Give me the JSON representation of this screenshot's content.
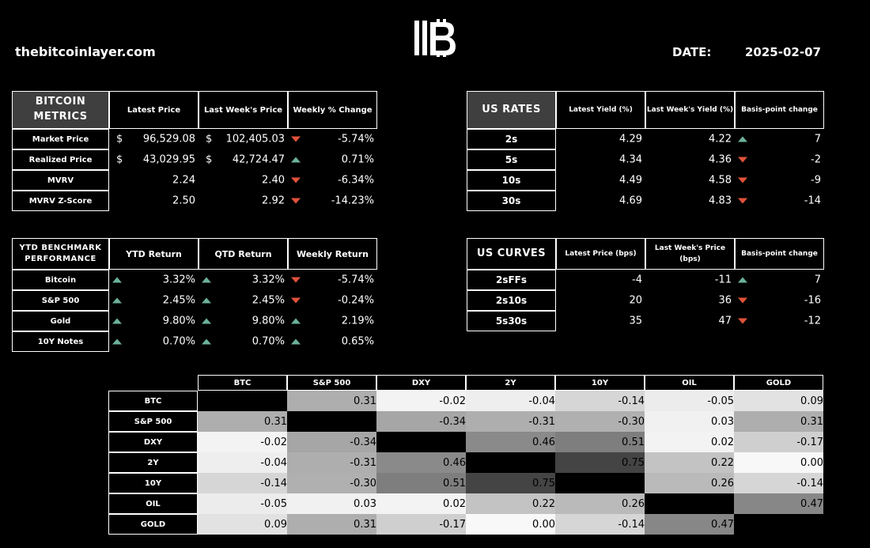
{
  "header": {
    "site": "thebitcoinlayer.com",
    "date_label": "DATE:",
    "date_value": "2025-02-07",
    "logo_icon": "bitcoin-layer-logo-icon"
  },
  "colors": {
    "up_arrow": "#6bb29a",
    "down_arrow": "#e0523a",
    "title_bg": "#3f3f3f"
  },
  "bitcoin_metrics": {
    "title_line1": "BITCOIN",
    "title_line2": "METRICS",
    "columns": [
      "Latest Price",
      "Last Week's Price",
      "Weekly % Change"
    ],
    "rows": [
      {
        "label": "Market Price",
        "cur1": "$",
        "latest": "96,529.08",
        "cur2": "$",
        "last": "102,405.03",
        "dir": "down",
        "change": "-5.74%"
      },
      {
        "label": "Realized Price",
        "cur1": "$",
        "latest": "43,029.95",
        "cur2": "$",
        "last": "42,724.47",
        "dir": "up",
        "change": "0.71%"
      },
      {
        "label": "MVRV",
        "cur1": "",
        "latest": "2.24",
        "cur2": "",
        "last": "2.40",
        "dir": "down",
        "change": "-6.34%"
      },
      {
        "label": "MVRV Z-Score",
        "cur1": "",
        "latest": "2.50",
        "cur2": "",
        "last": "2.92",
        "dir": "down",
        "change": "-14.23%"
      }
    ]
  },
  "us_rates": {
    "title": "US RATES",
    "columns": [
      "Latest Yield (%)",
      "Last Week's Yield (%)",
      "Basis-point change"
    ],
    "rows": [
      {
        "label": "2s",
        "latest": "4.29",
        "last": "4.22",
        "dir": "up",
        "change": "7"
      },
      {
        "label": "5s",
        "latest": "4.34",
        "last": "4.36",
        "dir": "down",
        "change": "-2"
      },
      {
        "label": "10s",
        "latest": "4.49",
        "last": "4.58",
        "dir": "down",
        "change": "-9"
      },
      {
        "label": "30s",
        "latest": "4.69",
        "last": "4.83",
        "dir": "down",
        "change": "-14"
      }
    ]
  },
  "ytd_benchmark": {
    "title_line1": "YTD BENCHMARK",
    "title_line2": "PERFORMANCE",
    "columns": [
      "YTD Return",
      "QTD Return",
      "Weekly Return"
    ],
    "rows": [
      {
        "label": "Bitcoin",
        "ytd_dir": "up",
        "ytd": "3.32%",
        "qtd_dir": "up",
        "qtd": "3.32%",
        "wk_dir": "down",
        "wk": "-5.74%"
      },
      {
        "label": "S&P 500",
        "ytd_dir": "up",
        "ytd": "2.45%",
        "qtd_dir": "up",
        "qtd": "2.45%",
        "wk_dir": "down",
        "wk": "-0.24%"
      },
      {
        "label": "Gold",
        "ytd_dir": "up",
        "ytd": "9.80%",
        "qtd_dir": "up",
        "qtd": "9.80%",
        "wk_dir": "up",
        "wk": "2.19%"
      },
      {
        "label": "10Y Notes",
        "ytd_dir": "up",
        "ytd": "0.70%",
        "qtd_dir": "up",
        "qtd": "0.70%",
        "wk_dir": "up",
        "wk": "0.65%"
      }
    ]
  },
  "us_curves": {
    "title": "US CURVES",
    "col1": "Latest Price (bps)",
    "col2_line1": "Last Week's Price",
    "col2_line2": "(bps)",
    "col3": "Basis-point change",
    "rows": [
      {
        "label": "2sFFs",
        "latest": "-4",
        "last": "-11",
        "dir": "up",
        "change": "7"
      },
      {
        "label": "2s10s",
        "latest": "20",
        "last": "36",
        "dir": "down",
        "change": "-16"
      },
      {
        "label": "5s30s",
        "latest": "35",
        "last": "47",
        "dir": "down",
        "change": "-12"
      }
    ]
  },
  "correlation": {
    "headers": [
      "BTC",
      "S&P 500",
      "DXY",
      "2Y",
      "10Y",
      "OIL",
      "GOLD"
    ],
    "rows": [
      {
        "label": "BTC",
        "values": [
          "",
          "0.31",
          "-0.02",
          "-0.04",
          "-0.14",
          "-0.05",
          "0.09"
        ]
      },
      {
        "label": "S&P 500",
        "values": [
          "0.31",
          "",
          "-0.34",
          "-0.31",
          "-0.30",
          "0.03",
          "0.31"
        ]
      },
      {
        "label": "DXY",
        "values": [
          "-0.02",
          "-0.34",
          "",
          "0.46",
          "0.51",
          "0.02",
          "-0.17"
        ]
      },
      {
        "label": "2Y",
        "values": [
          "-0.04",
          "-0.31",
          "0.46",
          "",
          "0.75",
          "0.22",
          "0.00"
        ]
      },
      {
        "label": "10Y",
        "values": [
          "-0.14",
          "-0.30",
          "0.51",
          "0.75",
          "",
          "0.26",
          "-0.14"
        ]
      },
      {
        "label": "OIL",
        "values": [
          "-0.05",
          "0.03",
          "0.02",
          "0.22",
          "0.26",
          "",
          "0.47"
        ]
      },
      {
        "label": "GOLD",
        "values": [
          "0.09",
          "0.31",
          "-0.17",
          "0.00",
          "-0.14",
          "0.47",
          ""
        ]
      }
    ]
  }
}
